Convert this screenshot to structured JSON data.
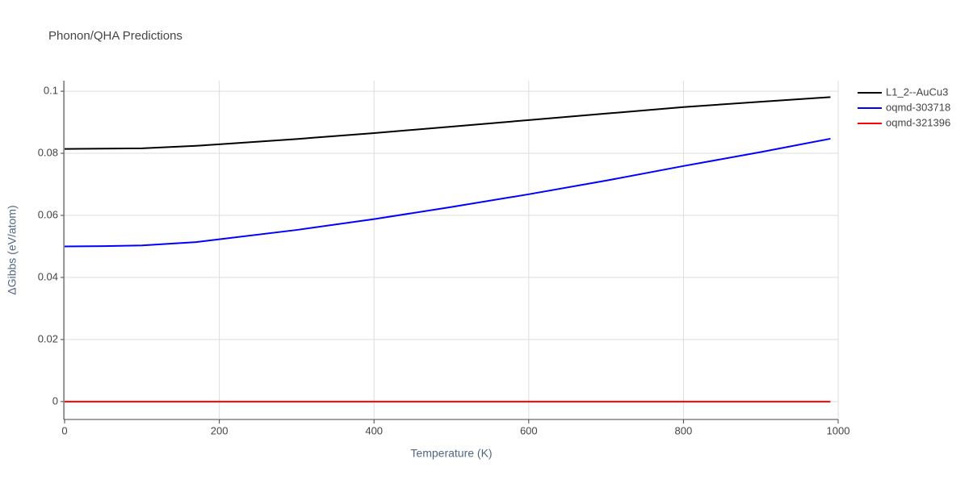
{
  "chart_data": {
    "type": "line",
    "title": "Phonon/QHA Predictions",
    "x_label": "Temperature (K)",
    "y_label": "ΔGibbs (eV/atom)",
    "x": [
      0,
      50,
      100,
      170,
      200,
      300,
      400,
      500,
      600,
      700,
      800,
      900,
      990
    ],
    "series": [
      {
        "name": "L1_2--AuCu3",
        "color": "#000000",
        "values": [
          0.0814,
          0.0815,
          0.0816,
          0.0824,
          0.0829,
          0.0846,
          0.0865,
          0.0886,
          0.0907,
          0.0928,
          0.0949,
          0.0966,
          0.0981
        ]
      },
      {
        "name": "oqmd-303718",
        "color": "#0000ff",
        "values": [
          0.05,
          0.0501,
          0.0503,
          0.0514,
          0.0523,
          0.0553,
          0.0588,
          0.0627,
          0.0668,
          0.0712,
          0.0759,
          0.0804,
          0.0847
        ]
      },
      {
        "name": "oqmd-321396",
        "color": "#ff0000",
        "values": [
          0,
          0,
          0,
          0,
          0,
          0,
          0,
          0,
          0,
          0,
          0,
          0,
          0
        ]
      }
    ],
    "xlim": [
      0,
      1000
    ],
    "xticks": [
      0,
      200,
      400,
      600,
      800,
      1000
    ],
    "ylim": [
      -0.0055,
      0.1034
    ],
    "yticks": [
      0,
      0.02,
      0.04,
      0.06,
      0.08,
      0.1
    ],
    "grid": true,
    "legend": "outside-top-right"
  }
}
